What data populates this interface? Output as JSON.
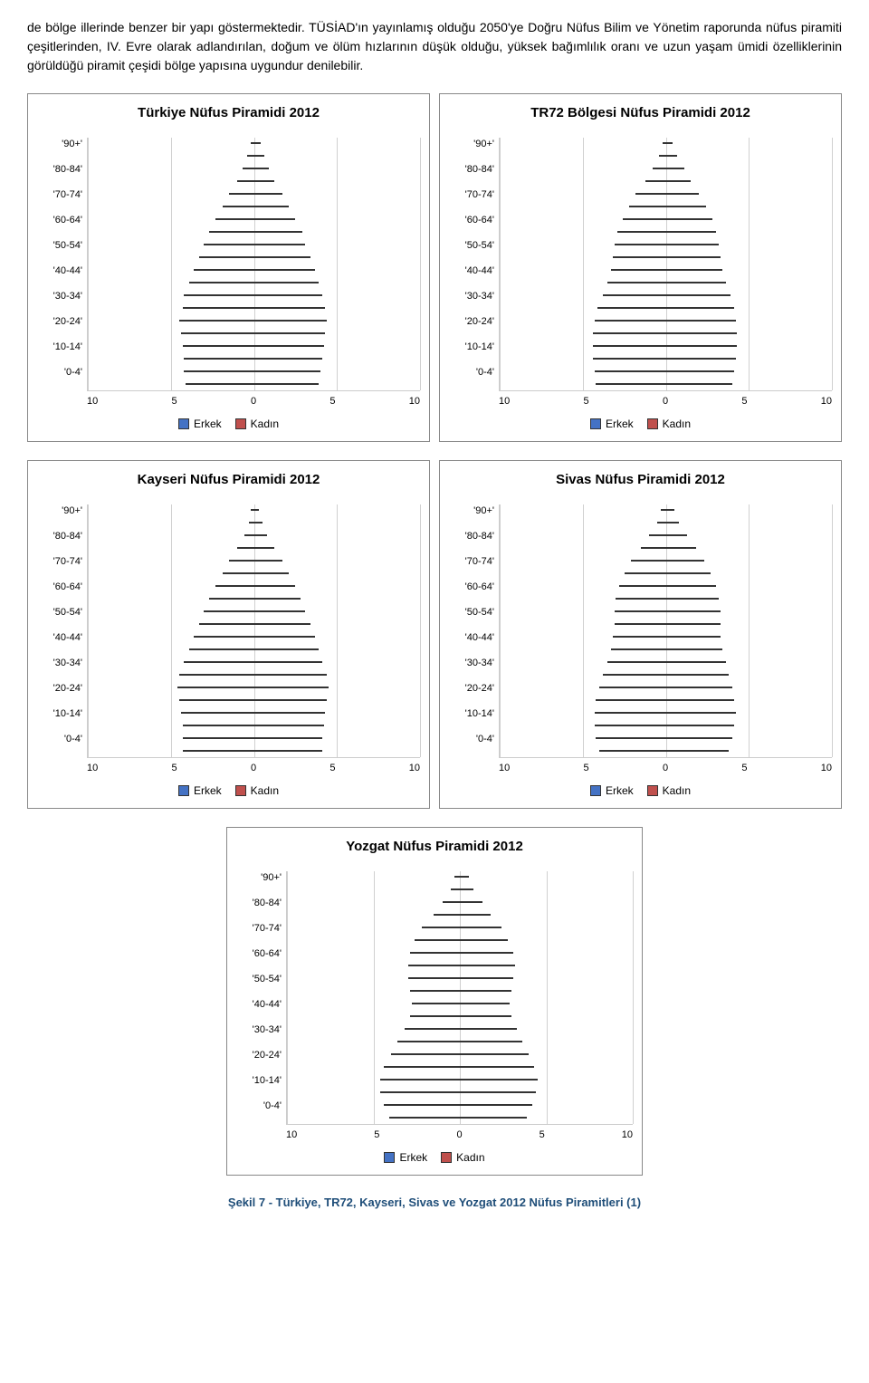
{
  "paragraph": "de bölge illerinde benzer bir yapı göstermektedir. TÜSİAD'ın yayınlamış olduğu 2050'ye Doğru Nüfus Bilim ve Yönetim raporunda nüfus piramiti çeşitlerinden, IV. Evre olarak adlandırılan, doğum ve ölüm hızlarının düşük olduğu, yüksek bağımlılık oranı ve uzun yaşam ümidi özelliklerinin görüldüğü piramit çeşidi bölge yapısına uygundur denilebilir.",
  "caption": "Şekil 7 - Türkiye, TR72, Kayseri, Sivas ve Yozgat 2012 Nüfus Piramitleri (1)",
  "colors": {
    "male": "#4472c4",
    "female": "#c0504d",
    "grid": "#d0d0d0",
    "background": "#ffffff"
  },
  "legend": {
    "male": "Erkek",
    "female": "Kadın"
  },
  "age_labels": [
    "'90+'",
    "'80-84'",
    "'70-74'",
    "'60-64'",
    "'50-54'",
    "'40-44'",
    "'30-34'",
    "'20-24'",
    "'10-14'",
    "'0-4'"
  ],
  "charts": [
    {
      "title": "Türkiye Nüfus Piramidi 2012",
      "type": "pyramid",
      "xlim": [
        -10,
        10
      ],
      "xticks": [
        10,
        5,
        0,
        5,
        10
      ],
      "male": [
        0.2,
        0.4,
        0.7,
        1.0,
        1.5,
        1.9,
        2.3,
        2.7,
        3.0,
        3.3,
        3.6,
        3.9,
        4.2,
        4.3,
        4.5,
        4.4,
        4.3,
        4.2,
        4.2,
        4.1
      ],
      "female": [
        0.4,
        0.6,
        0.9,
        1.2,
        1.7,
        2.1,
        2.5,
        2.9,
        3.1,
        3.4,
        3.7,
        3.9,
        4.1,
        4.3,
        4.4,
        4.3,
        4.2,
        4.1,
        4.0,
        3.9
      ]
    },
    {
      "title": "TR72 Bölgesi Nüfus Piramidi 2012",
      "type": "pyramid",
      "xlim": [
        -10,
        10
      ],
      "xticks": [
        10,
        5,
        0,
        5,
        10
      ],
      "male": [
        0.2,
        0.4,
        0.8,
        1.2,
        1.8,
        2.2,
        2.6,
        2.9,
        3.1,
        3.2,
        3.3,
        3.5,
        3.8,
        4.1,
        4.3,
        4.4,
        4.4,
        4.4,
        4.3,
        4.2
      ],
      "female": [
        0.4,
        0.7,
        1.1,
        1.5,
        2.0,
        2.4,
        2.8,
        3.0,
        3.2,
        3.3,
        3.4,
        3.6,
        3.9,
        4.1,
        4.2,
        4.3,
        4.3,
        4.2,
        4.1,
        4.0
      ]
    },
    {
      "title": "Kayseri Nüfus Piramidi 2012",
      "type": "pyramid",
      "xlim": [
        -10,
        10
      ],
      "xticks": [
        10,
        5,
        0,
        5,
        10
      ],
      "male": [
        0.2,
        0.3,
        0.6,
        1.0,
        1.5,
        1.9,
        2.3,
        2.7,
        3.0,
        3.3,
        3.6,
        3.9,
        4.2,
        4.5,
        4.6,
        4.5,
        4.4,
        4.3,
        4.3,
        4.3
      ],
      "female": [
        0.3,
        0.5,
        0.8,
        1.2,
        1.7,
        2.1,
        2.5,
        2.8,
        3.1,
        3.4,
        3.7,
        3.9,
        4.1,
        4.4,
        4.5,
        4.4,
        4.3,
        4.2,
        4.1,
        4.1
      ]
    },
    {
      "title": "Sivas Nüfus Piramidi 2012",
      "type": "pyramid",
      "xlim": [
        -10,
        10
      ],
      "xticks": [
        10,
        5,
        0,
        5,
        10
      ],
      "male": [
        0.3,
        0.5,
        1.0,
        1.5,
        2.1,
        2.5,
        2.8,
        3.0,
        3.1,
        3.1,
        3.2,
        3.3,
        3.5,
        3.8,
        4.0,
        4.2,
        4.3,
        4.3,
        4.2,
        4.0
      ],
      "female": [
        0.5,
        0.8,
        1.3,
        1.8,
        2.3,
        2.7,
        3.0,
        3.2,
        3.3,
        3.3,
        3.3,
        3.4,
        3.6,
        3.8,
        4.0,
        4.1,
        4.2,
        4.1,
        4.0,
        3.8
      ]
    },
    {
      "title": "Yozgat Nüfus Piramidi 2012",
      "type": "pyramid",
      "xlim": [
        -10,
        10
      ],
      "xticks": [
        10,
        5,
        0,
        5,
        10
      ],
      "male": [
        0.3,
        0.5,
        1.0,
        1.5,
        2.2,
        2.6,
        2.9,
        3.0,
        3.0,
        2.9,
        2.8,
        2.9,
        3.2,
        3.6,
        4.0,
        4.4,
        4.6,
        4.6,
        4.4,
        4.1
      ],
      "female": [
        0.5,
        0.8,
        1.3,
        1.8,
        2.4,
        2.8,
        3.1,
        3.2,
        3.1,
        3.0,
        2.9,
        3.0,
        3.3,
        3.6,
        4.0,
        4.3,
        4.5,
        4.4,
        4.2,
        3.9
      ]
    }
  ]
}
